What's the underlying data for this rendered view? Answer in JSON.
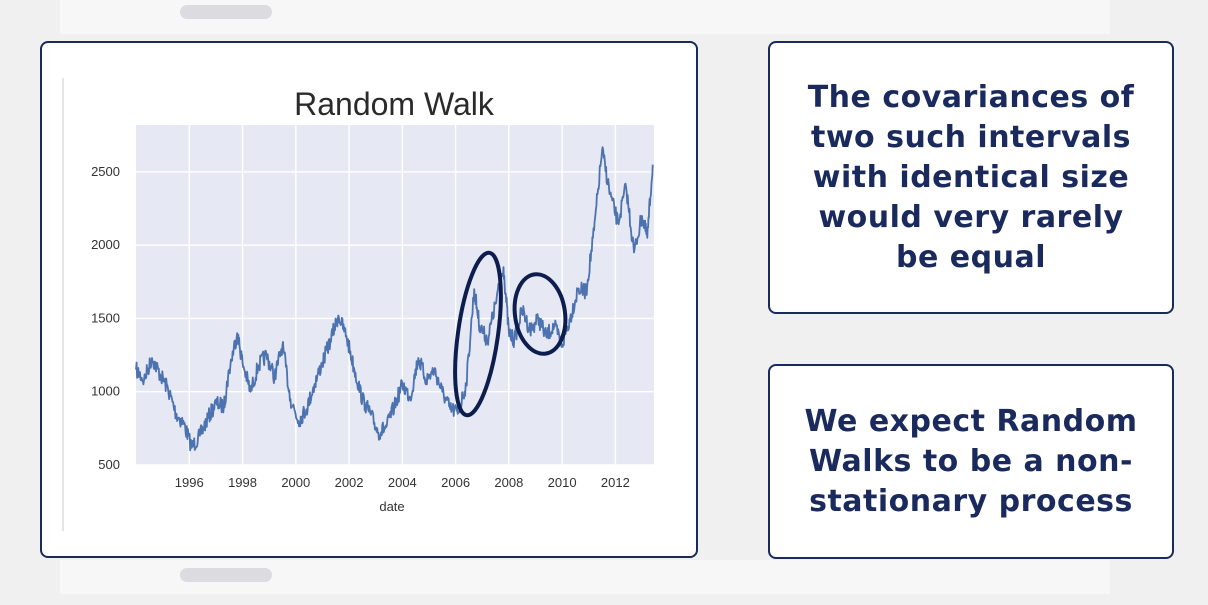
{
  "chart_data": {
    "type": "line",
    "title": "Random Walk",
    "xlabel": "date",
    "ylabel": "",
    "xlim": [
      1994.0,
      2013.45
    ],
    "ylim": [
      500,
      2820
    ],
    "x_ticks": [
      1996,
      1998,
      2000,
      2002,
      2004,
      2006,
      2008,
      2010,
      2012
    ],
    "y_ticks": [
      500,
      1000,
      1500,
      2000,
      2500
    ],
    "grid": true,
    "series": [
      {
        "color": "#4c72b0",
        "x": [
          1994.0,
          1994.3,
          1994.6,
          1994.9,
          1995.2,
          1995.5,
          1995.8,
          1996.1,
          1996.4,
          1996.7,
          1997.0,
          1997.3,
          1997.5,
          1997.8,
          1998.0,
          1998.3,
          1998.6,
          1998.9,
          1999.2,
          1999.5,
          1999.8,
          2000.1,
          2000.4,
          2000.7,
          2001.0,
          2001.3,
          2001.6,
          2001.9,
          2002.2,
          2002.5,
          2002.8,
          2003.1,
          2003.4,
          2003.7,
          2004.0,
          2004.3,
          2004.6,
          2004.9,
          2005.2,
          2005.5,
          2005.8,
          2006.1,
          2006.4,
          2006.7,
          2006.9,
          2007.2,
          2007.5,
          2007.8,
          2008.0,
          2008.2,
          2008.5,
          2008.8,
          2009.1,
          2009.4,
          2009.7,
          2010.0,
          2010.3,
          2010.6,
          2010.9,
          2011.2,
          2011.5,
          2011.8,
          2012.1,
          2012.4,
          2012.7,
          2013.0,
          2013.2,
          2013.4
        ],
        "values": [
          1150,
          1080,
          1230,
          1120,
          1020,
          850,
          780,
          620,
          700,
          820,
          920,
          900,
          1150,
          1400,
          1200,
          1000,
          1180,
          1250,
          1100,
          1320,
          950,
          800,
          880,
          1050,
          1200,
          1350,
          1520,
          1380,
          1150,
          950,
          850,
          720,
          760,
          900,
          1050,
          960,
          1230,
          1080,
          1150,
          1000,
          880,
          860,
          1050,
          1700,
          1450,
          1350,
          1600,
          1850,
          1400,
          1350,
          1560,
          1420,
          1500,
          1380,
          1450,
          1320,
          1500,
          1700,
          1680,
          2100,
          2650,
          2350,
          2150,
          2400,
          1950,
          2200,
          2050,
          2550
        ]
      }
    ]
  },
  "text_card_1": "The covariances of two such intervals with identical size would very rarely be equal",
  "text_card_2": "We expect Random Walks to be a non-stationary process",
  "annotations": {
    "ellipse_color": "#0d1e4e"
  }
}
